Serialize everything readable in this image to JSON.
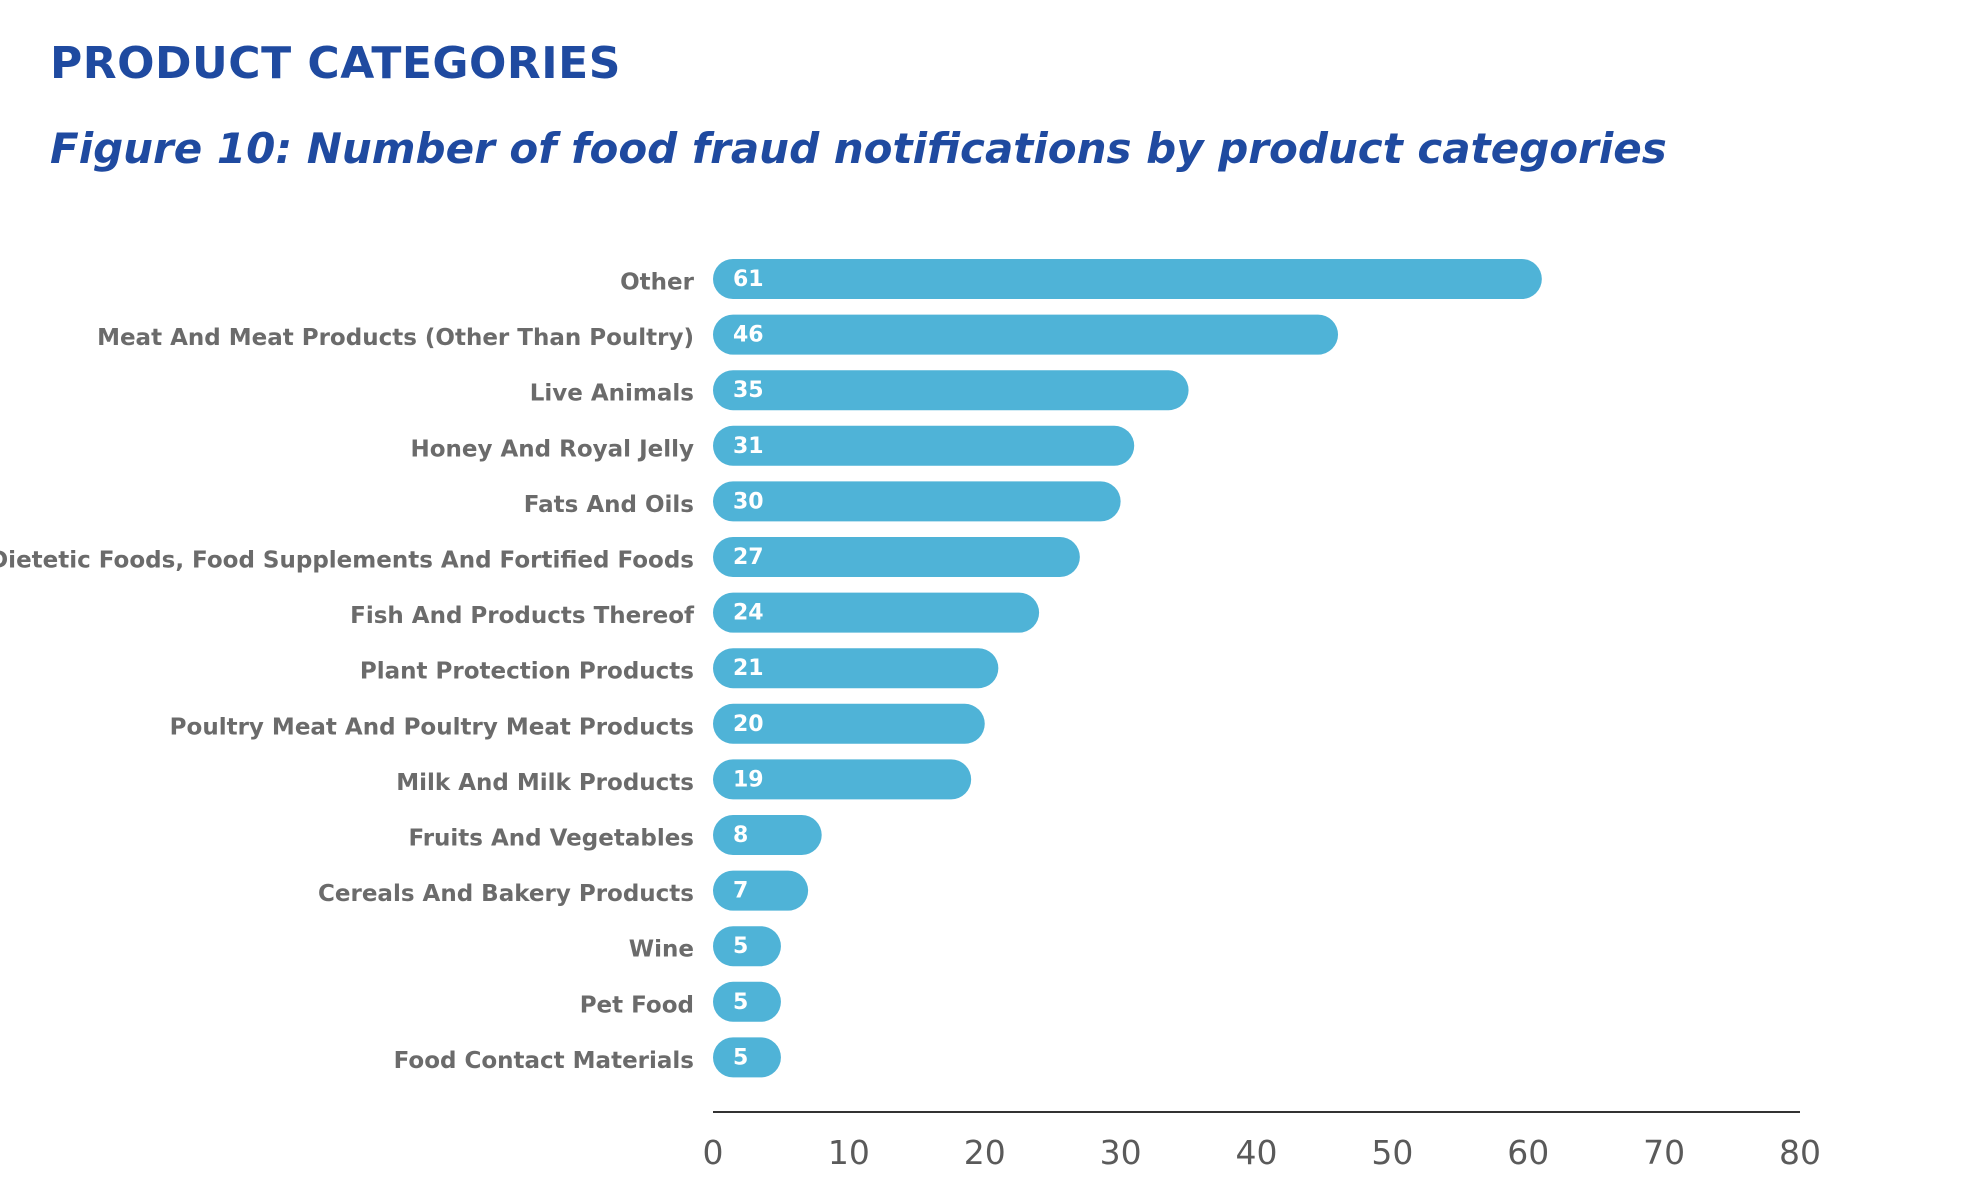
{
  "header": {
    "section_title": "PRODUCT CATEGORIES",
    "figure_title": "Figure 10: Number of food fraud notifications by product categories"
  },
  "colors": {
    "title": "#1f4aa0",
    "bar": "#4fb3d7",
    "label": "#6b6b6b",
    "axis": "#333333"
  },
  "chart_data": {
    "type": "bar",
    "orientation": "horizontal",
    "title": "Figure 10: Number of food fraud notifications by product categories",
    "xlabel": "",
    "ylabel": "",
    "xlim": [
      0,
      80
    ],
    "ticks": [
      0,
      10,
      20,
      30,
      40,
      50,
      60,
      70,
      80
    ],
    "grid": false,
    "categories": [
      "Other",
      "Meat And Meat Products (Other Than Poultry)",
      "Live Animals",
      "Honey And Royal Jelly",
      "Fats And Oils",
      "Dietetic Foods, Food Supplements And Fortified Foods",
      "Fish And Products Thereof",
      "Plant Protection Products",
      "Poultry Meat And Poultry Meat Products",
      "Milk And Milk Products",
      "Fruits And Vegetables",
      "Cereals And Bakery Products",
      "Wine",
      "Pet Food",
      "Food Contact Materials"
    ],
    "values": [
      61,
      46,
      35,
      31,
      30,
      27,
      24,
      21,
      20,
      19,
      8,
      7,
      5,
      5,
      5
    ]
  }
}
